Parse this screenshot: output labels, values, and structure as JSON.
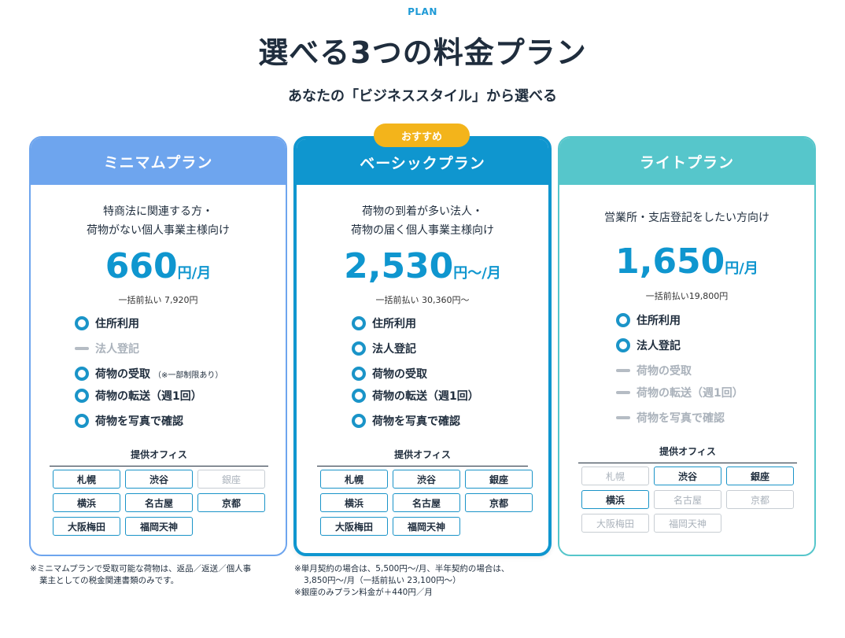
{
  "header": {
    "kicker": "PLAN",
    "title": "選べる3つの料金プラン",
    "subtitle": "あなたの「ビジネススタイル」から選べる"
  },
  "colors": {
    "minimum": "#6ea5ee",
    "basic": "#0f96cf",
    "lite": "#56c6cb",
    "badge": "#f3b41b",
    "price": "#0f96cf"
  },
  "office_section_title": "提供オフィス",
  "plans": [
    {
      "name": "ミニマムプラン",
      "target": [
        "特商法に関連する方・",
        "荷物がない個人事業主様向け"
      ],
      "price": "660",
      "unit": "円/月",
      "lump_sum": "一括前払い 7,920円",
      "features": [
        {
          "label": "住所利用",
          "included": true,
          "note": ""
        },
        {
          "label": "法人登記",
          "included": false,
          "note": ""
        },
        {
          "label": "荷物の受取",
          "included": true,
          "note": "（※一部制限あり）"
        },
        {
          "label": "荷物の転送（週1回）",
          "included": true,
          "note": ""
        },
        {
          "label": "荷物を写真で確認",
          "included": true,
          "note": ""
        }
      ],
      "offices": [
        {
          "label": "札幌",
          "available": true
        },
        {
          "label": "渋谷",
          "available": true
        },
        {
          "label": "銀座",
          "available": false
        },
        {
          "label": "横浜",
          "available": true
        },
        {
          "label": "名古屋",
          "available": true
        },
        {
          "label": "京都",
          "available": true
        },
        {
          "label": "大阪梅田",
          "available": true
        },
        {
          "label": "福岡天神",
          "available": true
        }
      ]
    },
    {
      "name": "ベーシックプラン",
      "badge": "おすすめ",
      "target": [
        "荷物の到着が多い法人・",
        "荷物の届く個人事業主様向け"
      ],
      "price": "2,530",
      "unit": "円～/月",
      "lump_sum": "一括前払い 30,360円～",
      "features": [
        {
          "label": "住所利用",
          "included": true,
          "note": ""
        },
        {
          "label": "法人登記",
          "included": true,
          "note": ""
        },
        {
          "label": "荷物の受取",
          "included": true,
          "note": ""
        },
        {
          "label": "荷物の転送（週1回）",
          "included": true,
          "note": ""
        },
        {
          "label": "荷物を写真で確認",
          "included": true,
          "note": ""
        }
      ],
      "offices": [
        {
          "label": "札幌",
          "available": true
        },
        {
          "label": "渋谷",
          "available": true
        },
        {
          "label": "銀座",
          "available": true
        },
        {
          "label": "横浜",
          "available": true
        },
        {
          "label": "名古屋",
          "available": true
        },
        {
          "label": "京都",
          "available": true
        },
        {
          "label": "大阪梅田",
          "available": true
        },
        {
          "label": "福岡天神",
          "available": true
        }
      ]
    },
    {
      "name": "ライトプラン",
      "target": [
        "営業所・支店登記をしたい方向け"
      ],
      "price": "1,650",
      "unit": "円/月",
      "lump_sum": "一括前払い19,800円",
      "features": [
        {
          "label": "住所利用",
          "included": true,
          "note": ""
        },
        {
          "label": "法人登記",
          "included": true,
          "note": ""
        },
        {
          "label": "荷物の受取",
          "included": false,
          "note": ""
        },
        {
          "label": "荷物の転送（週1回）",
          "included": false,
          "note": ""
        },
        {
          "label": "荷物を写真で確認",
          "included": false,
          "note": ""
        }
      ],
      "offices": [
        {
          "label": "札幌",
          "available": false
        },
        {
          "label": "渋谷",
          "available": true
        },
        {
          "label": "銀座",
          "available": true
        },
        {
          "label": "横浜",
          "available": true
        },
        {
          "label": "名古屋",
          "available": false
        },
        {
          "label": "京都",
          "available": false
        },
        {
          "label": "大阪梅田",
          "available": false
        },
        {
          "label": "福岡天神",
          "available": false
        }
      ]
    }
  ],
  "footnotes": {
    "minimum": [
      "※ミニマムプランで受取可能な荷物は、返品／返送／個人事",
      "業主としての税金関連書類のみです。"
    ],
    "basic": [
      "※単月契約の場合は、5,500円～/月、半年契約の場合は、",
      "3,850円～/月（一括前払い 23,100円～）",
      "※銀座のみプラン料金が＋440円／月"
    ]
  }
}
